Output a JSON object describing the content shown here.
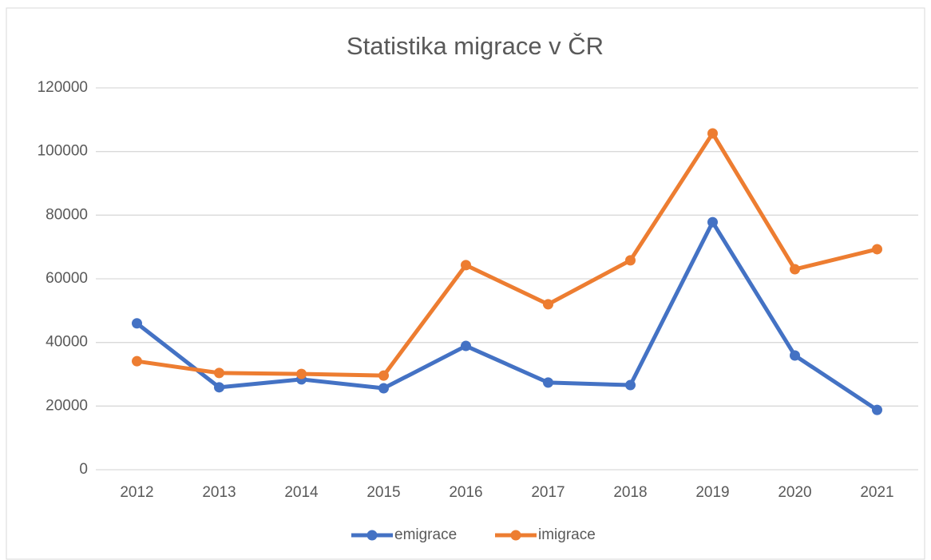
{
  "chart_data": {
    "type": "line",
    "title": "Statistika migrace v ČR",
    "categories": [
      "2012",
      "2013",
      "2014",
      "2015",
      "2016",
      "2017",
      "2018",
      "2019",
      "2020",
      "2021"
    ],
    "series": [
      {
        "name": "emigrace",
        "color": "#4472c4",
        "values": [
          46000,
          25900,
          28400,
          25600,
          38900,
          27400,
          26600,
          77800,
          35900,
          18800
        ]
      },
      {
        "name": "imigrace",
        "color": "#ed7d31",
        "values": [
          34100,
          30400,
          30100,
          29600,
          64300,
          52000,
          65800,
          105700,
          63000,
          69300
        ]
      }
    ],
    "ylim": [
      0,
      120000
    ],
    "yticks": [
      0,
      20000,
      40000,
      60000,
      80000,
      100000,
      120000
    ],
    "grid": true,
    "legend": "bottom"
  }
}
